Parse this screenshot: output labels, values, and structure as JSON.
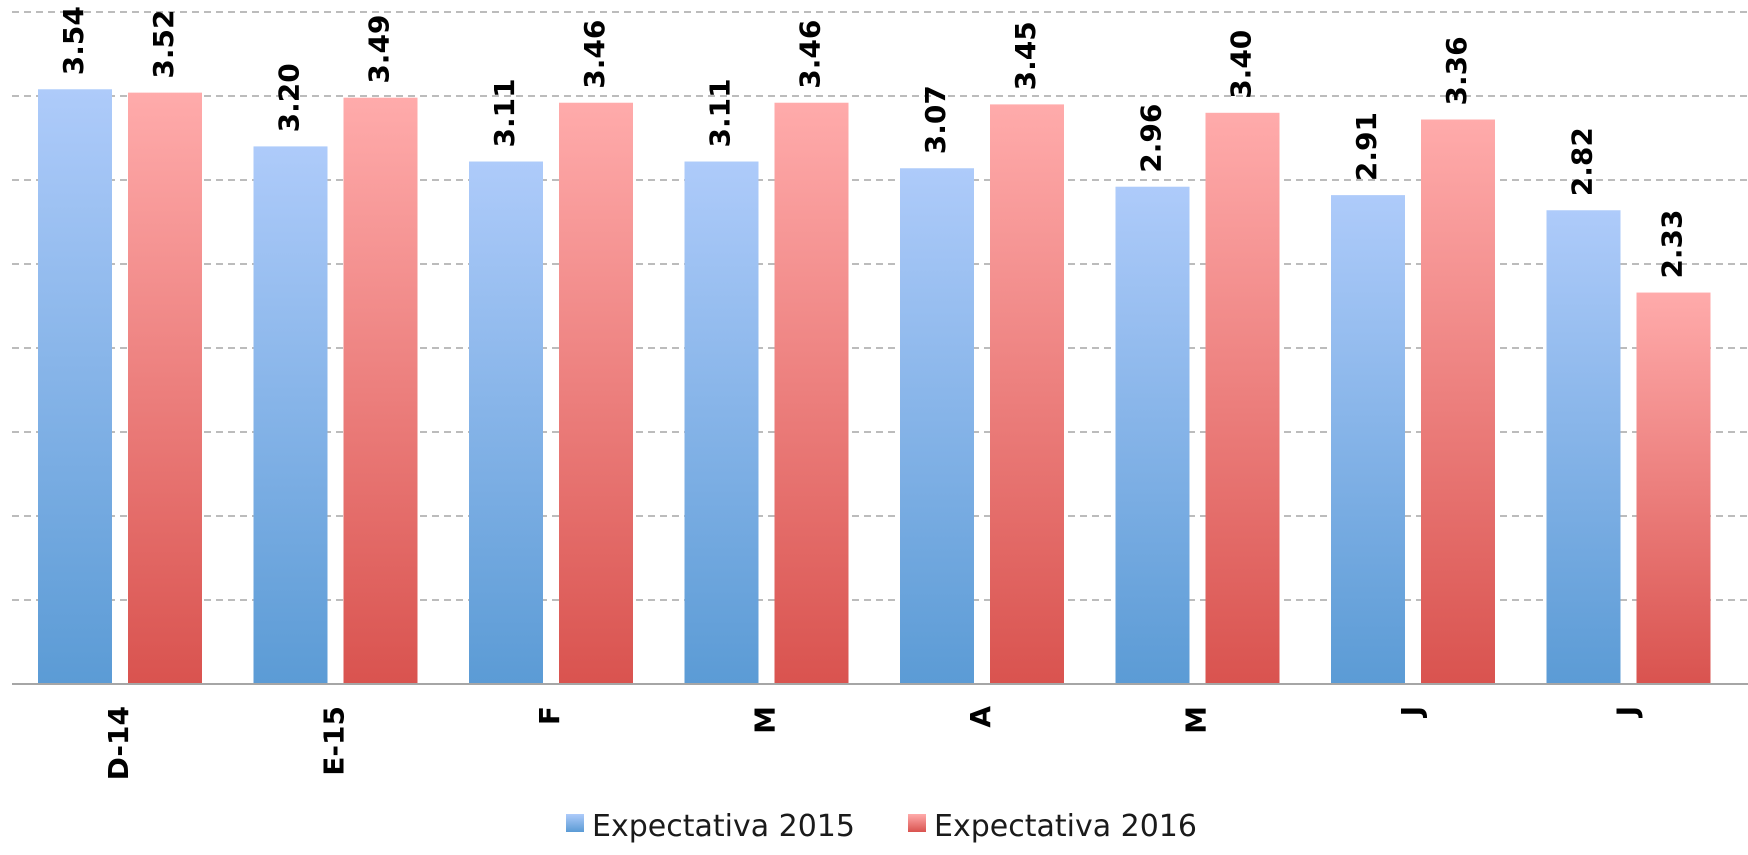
{
  "chart_data": {
    "type": "bar",
    "categories": [
      "D-14",
      "E-15",
      "F",
      "M",
      "A",
      "M",
      "J",
      "J"
    ],
    "series": [
      {
        "name": "Expectativa 2015",
        "values": [
          3.54,
          3.2,
          3.11,
          3.11,
          3.07,
          2.96,
          2.91,
          2.82
        ],
        "color": "#5b9bd5",
        "color_light": "#aecbfa"
      },
      {
        "name": "Expectativa 2016",
        "values": [
          3.52,
          3.49,
          3.46,
          3.46,
          3.45,
          3.4,
          3.36,
          2.33
        ],
        "color": "#d9534f",
        "color_light": "#ffabab"
      }
    ],
    "value_labels": [
      [
        "3.54",
        "3.20",
        "3.11",
        "3.11",
        "3.07",
        "2.96",
        "2.91",
        "2.82"
      ],
      [
        "3.52",
        "3.49",
        "3.46",
        "3.46",
        "3.45",
        "3.40",
        "3.36",
        "2.33"
      ]
    ],
    "ylim": [
      0,
      4
    ],
    "y_grid_step": 0.5,
    "grid": true,
    "legend_position": "bottom-center",
    "title": "",
    "xlabel": "",
    "ylabel": ""
  }
}
